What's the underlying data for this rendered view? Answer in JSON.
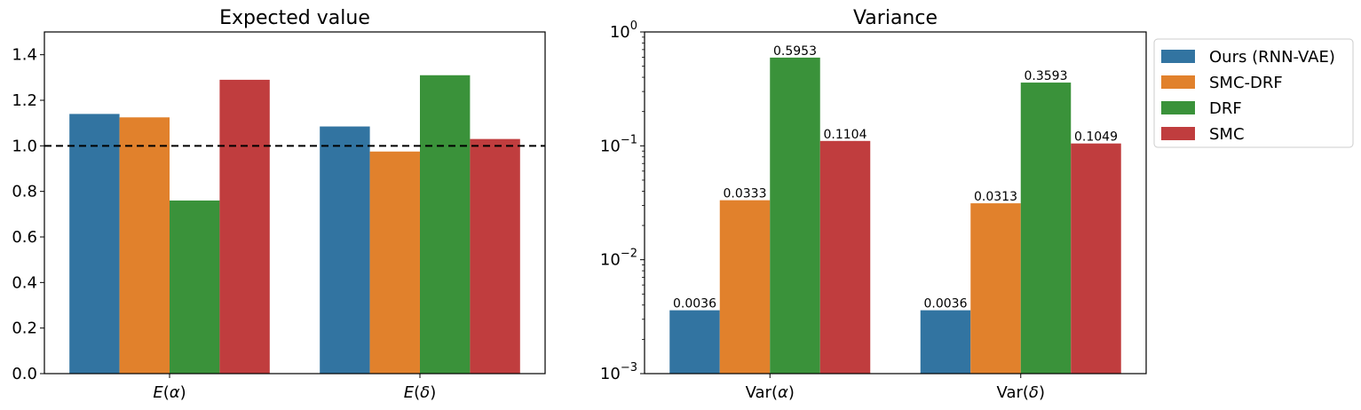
{
  "colors": {
    "Ours (RNN-VAE)": "#3274a1",
    "SMC-DRF": "#e1812c",
    "DRF": "#3a923a",
    "SMC": "#c03d3e"
  },
  "chart_data": [
    {
      "type": "bar",
      "title": "Expected value",
      "categories": [
        "E(α)",
        "E(δ)"
      ],
      "series": [
        {
          "name": "Ours (RNN-VAE)",
          "values": [
            1.14,
            1.085
          ]
        },
        {
          "name": "SMC-DRF",
          "values": [
            1.125,
            0.975
          ]
        },
        {
          "name": "DRF",
          "values": [
            0.76,
            1.31
          ]
        },
        {
          "name": "SMC",
          "values": [
            1.29,
            1.03
          ]
        }
      ],
      "ylim": [
        0,
        1.5
      ],
      "yscale": "linear",
      "yticks": [
        "0.0",
        "0.2",
        "0.4",
        "0.6",
        "0.8",
        "1.0",
        "1.2",
        "1.4"
      ],
      "reference_line": {
        "y": 1.0,
        "style": "dashed"
      },
      "grid": false
    },
    {
      "type": "bar",
      "title": "Variance",
      "categories": [
        "Var(α)",
        "Var(δ)"
      ],
      "series": [
        {
          "name": "Ours (RNN-VAE)",
          "values": [
            0.0036,
            0.0036
          ],
          "labels": [
            "0.0036",
            "0.0036"
          ]
        },
        {
          "name": "SMC-DRF",
          "values": [
            0.0333,
            0.0313
          ],
          "labels": [
            "0.0333",
            "0.0313"
          ]
        },
        {
          "name": "DRF",
          "values": [
            0.5953,
            0.3593
          ],
          "labels": [
            "0.5953",
            "0.3593"
          ]
        },
        {
          "name": "SMC",
          "values": [
            0.1104,
            0.1049
          ],
          "labels": [
            "0.1104",
            "0.1049"
          ]
        }
      ],
      "ylim": [
        0.001,
        1
      ],
      "yscale": "log",
      "yticks": [
        {
          "value": 0.001,
          "base": "10",
          "exp": "−3"
        },
        {
          "value": 0.01,
          "base": "10",
          "exp": "−2"
        },
        {
          "value": 0.1,
          "base": "10",
          "exp": "−1"
        },
        {
          "value": 1,
          "base": "10",
          "exp": "0"
        }
      ],
      "legend": {
        "position": "outside-right",
        "entries": [
          "Ours (RNN-VAE)",
          "SMC-DRF",
          "DRF",
          "SMC"
        ]
      },
      "grid": false
    }
  ]
}
